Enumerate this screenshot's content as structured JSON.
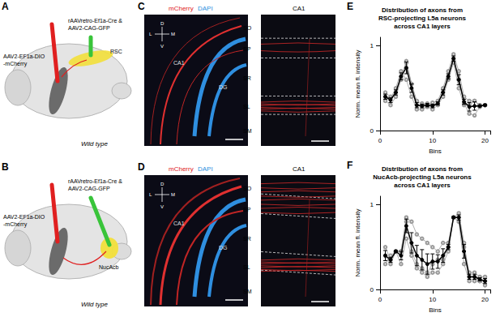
{
  "figure": {
    "diagrams": [
      {
        "label": "A",
        "injection_left": "AAV2-EF1a-DIO\n-mCherry",
        "injection_right": "rAAVretro-Ef1a-Cre &\nAAV2-CAG-GFP",
        "target": "RSC",
        "strain": "Wild type"
      },
      {
        "label": "B",
        "injection_left": "AAV2-EF1a-DIO\n-mCherry",
        "injection_right": "rAAVretro-Ef1a-Cre &\nAAV2-CAG-GFP",
        "target": "NucAcb",
        "strain": "Wild type"
      }
    ],
    "images": [
      {
        "label": "C",
        "stains": [
          "mCherry",
          "DAPI"
        ],
        "regions": [
          "CA1",
          "DG"
        ],
        "compass": [
          "D",
          "V",
          "L",
          "M"
        ],
        "inset_title": "CA1",
        "layers": [
          "SO",
          "SP",
          "SR",
          "SL",
          "SM"
        ]
      },
      {
        "label": "D",
        "stains": [
          "mCherry",
          "DAPI"
        ],
        "regions": [
          "CA1",
          "DG"
        ],
        "compass": [
          "D",
          "V",
          "L",
          "M"
        ],
        "inset_title": "CA1",
        "layers": [
          "SO",
          "SP",
          "SR",
          "SL",
          "SM"
        ]
      }
    ]
  },
  "chart_data": [
    {
      "panel": "E",
      "type": "line",
      "title": "Distribution of axons from\nRSC-projecting L5a neurons\nacross CA1 layers",
      "x_label": "Bins",
      "y_label": "Norm. mean fl. intensity",
      "x": [
        1,
        2,
        3,
        4,
        5,
        6,
        7,
        8,
        9,
        10,
        11,
        12,
        13,
        14,
        15,
        16,
        17,
        18,
        19,
        20
      ],
      "series": [
        {
          "color": "#9a9a9a",
          "marker": "emptyCircle",
          "values": [
            0.4,
            0.38,
            0.5,
            0.7,
            0.6,
            0.4,
            0.25,
            0.25,
            0.28,
            0.25,
            0.3,
            0.4,
            0.6,
            0.8,
            0.5,
            0.3,
            0.3,
            0.35,
            0.3,
            0.3
          ]
        },
        {
          "color": "#9a9a9a",
          "marker": "emptyCircle",
          "values": [
            0.35,
            0.3,
            0.4,
            0.6,
            0.8,
            0.55,
            0.35,
            0.32,
            0.3,
            0.33,
            0.35,
            0.5,
            0.7,
            0.9,
            0.7,
            0.4,
            0.35,
            0.35,
            0.3,
            0.3
          ]
        },
        {
          "color": "#9a9a9a",
          "marker": "emptyCircle",
          "values": [
            0.45,
            0.4,
            0.45,
            0.62,
            0.82,
            0.55,
            0.3,
            0.3,
            0.32,
            0.3,
            0.32,
            0.45,
            0.62,
            0.85,
            0.6,
            0.32,
            0.2,
            0.18,
            0.28,
            0.3
          ]
        },
        {
          "color": "#000000",
          "marker": "circle",
          "values": [
            0.4,
            0.36,
            0.45,
            0.64,
            0.74,
            0.5,
            0.3,
            0.29,
            0.3,
            0.29,
            0.32,
            0.45,
            0.64,
            0.85,
            0.6,
            0.34,
            0.28,
            0.29,
            0.29,
            0.3
          ],
          "errors": [
            0.03,
            0.03,
            0.03,
            0.04,
            0.07,
            0.05,
            0.03,
            0.02,
            0.02,
            0.02,
            0.02,
            0.03,
            0.03,
            0.03,
            0.06,
            0.03,
            0.05,
            0.05,
            0.01,
            0.01
          ]
        }
      ],
      "xlim": [
        0,
        21
      ],
      "xticks": [
        0,
        10,
        20
      ],
      "ylim": [
        0,
        1.1
      ],
      "yticks": [
        0,
        1
      ],
      "grid": false
    },
    {
      "panel": "F",
      "type": "line",
      "title": "Distribution of axons from\nNucAcb-projecting L5a neurons\nacross CA1 layers",
      "x_label": "Bins",
      "y_label": "Norm. mean fl. intensity",
      "x": [
        1,
        2,
        3,
        4,
        5,
        6,
        7,
        8,
        9,
        10,
        11,
        12,
        13,
        14,
        15,
        16,
        17,
        18,
        19,
        20
      ],
      "series": [
        {
          "color": "#9a9a9a",
          "marker": "emptyCircle",
          "values": [
            0.4,
            0.3,
            0.45,
            0.3,
            0.6,
            0.4,
            0.25,
            0.2,
            0.15,
            0.2,
            0.2,
            0.3,
            0.45,
            0.85,
            0.8,
            0.3,
            0.1,
            0.1,
            0.1,
            0.05
          ]
        },
        {
          "color": "#9a9a9a",
          "marker": "emptyCircle",
          "values": [
            0.5,
            0.35,
            0.45,
            0.45,
            0.85,
            0.8,
            0.65,
            0.6,
            0.55,
            0.5,
            0.45,
            0.55,
            0.55,
            0.85,
            0.85,
            0.5,
            0.2,
            0.2,
            0.15,
            0.15
          ]
        },
        {
          "color": "#9a9a9a",
          "marker": "emptyCircle",
          "values": [
            0.3,
            0.4,
            0.45,
            0.45,
            0.8,
            0.45,
            0.3,
            0.25,
            0.2,
            0.3,
            0.35,
            0.35,
            0.5,
            0.85,
            0.9,
            0.55,
            0.15,
            0.15,
            0.1,
            0.1
          ]
        },
        {
          "color": "#000000",
          "marker": "circle",
          "values": [
            0.4,
            0.35,
            0.45,
            0.4,
            0.75,
            0.55,
            0.4,
            0.35,
            0.3,
            0.33,
            0.33,
            0.4,
            0.5,
            0.85,
            0.85,
            0.45,
            0.15,
            0.15,
            0.12,
            0.1
          ],
          "errors": [
            0.06,
            0.03,
            0.01,
            0.05,
            0.08,
            0.12,
            0.12,
            0.12,
            0.12,
            0.09,
            0.08,
            0.08,
            0.03,
            0.01,
            0.03,
            0.08,
            0.03,
            0.03,
            0.02,
            0.03
          ]
        }
      ],
      "xlim": [
        0,
        21
      ],
      "xticks": [
        0,
        10,
        20
      ],
      "ylim": [
        0,
        1.1
      ],
      "yticks": [
        0,
        1
      ],
      "grid": false
    }
  ]
}
